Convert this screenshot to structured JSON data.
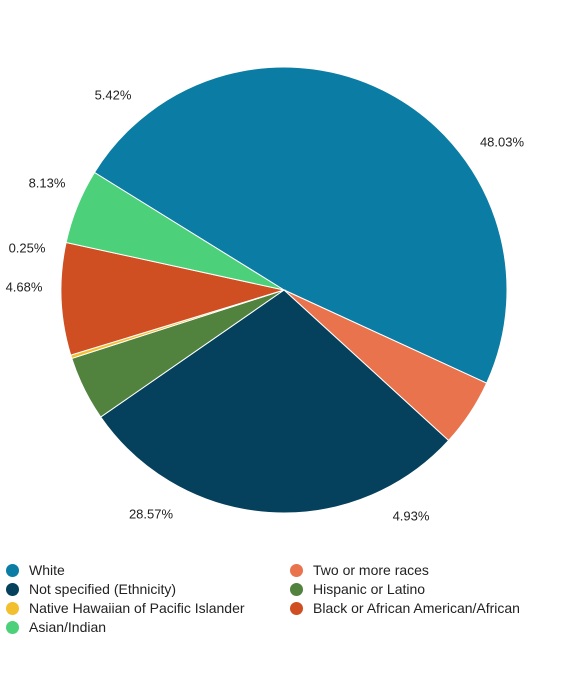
{
  "chart_data": {
    "type": "pie",
    "title": "",
    "slices": [
      {
        "label": "White",
        "value": 48.03,
        "value_label": "48.03%",
        "color": "#0B7CA3"
      },
      {
        "label": "Two or more races",
        "value": 4.93,
        "value_label": "4.93%",
        "color": "#E8734D"
      },
      {
        "label": "Not specified (Ethnicity)",
        "value": 28.57,
        "value_label": "28.57%",
        "color": "#05415C"
      },
      {
        "label": "Hispanic or Latino",
        "value": 4.68,
        "value_label": "4.68%",
        "color": "#51823E"
      },
      {
        "label": "Native Hawaiian of Pacific Islander",
        "value": 0.25,
        "value_label": "0.25%",
        "color": "#F2BF2E"
      },
      {
        "label": "Black or African American/African",
        "value": 8.13,
        "value_label": "8.13%",
        "color": "#CF4F22"
      },
      {
        "label": "Asian/Indian",
        "value": 5.42,
        "value_label": "5.42%",
        "color": "#4CD17A"
      }
    ],
    "legend_placement": "bottom",
    "legend": [
      {
        "label": "White",
        "color": "#0B7CA3"
      },
      {
        "label": "Two or more races",
        "color": "#E8734D"
      },
      {
        "label": "Not specified (Ethnicity)",
        "color": "#05415C"
      },
      {
        "label": "Hispanic or Latino",
        "color": "#51823E"
      },
      {
        "label": "Native Hawaiian of Pacific Islander",
        "color": "#F2BF2E"
      },
      {
        "label": "Black or African American/African",
        "color": "#CF4F22"
      },
      {
        "label": "Asian/Indian",
        "color": "#4CD17A"
      }
    ]
  }
}
